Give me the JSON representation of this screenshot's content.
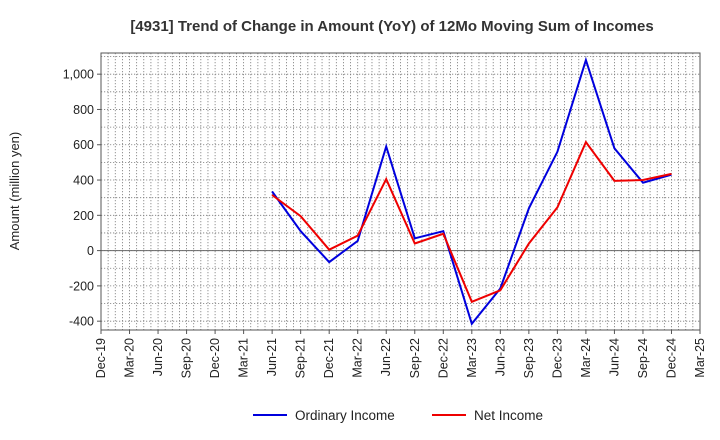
{
  "chart_data": {
    "type": "line",
    "title": "[4931]  Trend of Change in Amount (YoY) of 12Mo Moving Sum of Incomes",
    "ylabel": "Amount (million yen)",
    "xlabel": "",
    "categories": [
      "Dec-19",
      "Mar-20",
      "Jun-20",
      "Sep-20",
      "Dec-20",
      "Mar-21",
      "Jun-21",
      "Sep-21",
      "Dec-21",
      "Mar-22",
      "Jun-22",
      "Sep-22",
      "Dec-22",
      "Mar-23",
      "Jun-23",
      "Sep-23",
      "Dec-23",
      "Mar-24",
      "Jun-24",
      "Sep-24",
      "Dec-24",
      "Mar-25"
    ],
    "ylim": [
      -450,
      1120
    ],
    "yticks": [
      -400,
      -200,
      0,
      200,
      400,
      600,
      800,
      1000
    ],
    "ytick_labels": [
      "-400",
      "-200",
      "0",
      "200",
      "400",
      "600",
      "800",
      "1,000"
    ],
    "grid": true,
    "legend_position": "bottom",
    "series": [
      {
        "name": "Ordinary Income",
        "color": "#0000dd",
        "values": [
          null,
          null,
          null,
          null,
          null,
          null,
          335,
          110,
          -65,
          55,
          590,
          70,
          110,
          -415,
          -215,
          240,
          560,
          1080,
          580,
          385,
          430,
          null
        ]
      },
      {
        "name": "Net Income",
        "color": "#ee0000",
        "values": [
          null,
          null,
          null,
          null,
          null,
          null,
          315,
          195,
          5,
          85,
          405,
          40,
          95,
          -290,
          -225,
          40,
          245,
          615,
          395,
          400,
          435,
          null
        ]
      }
    ]
  }
}
